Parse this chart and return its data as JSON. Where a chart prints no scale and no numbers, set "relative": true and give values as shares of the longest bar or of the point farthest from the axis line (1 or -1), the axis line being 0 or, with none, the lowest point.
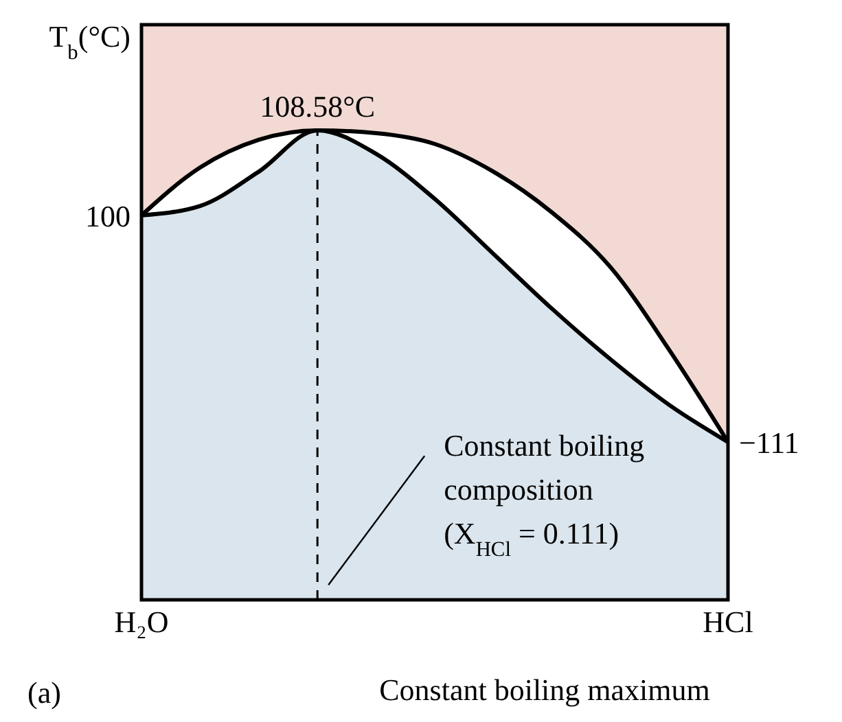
{
  "chart_data": {
    "type": "area",
    "title": "Constant boiling maximum",
    "ylabel": "T$_{b}$(°C)",
    "relative": true,
    "categories": [
      "H₂O",
      null,
      null,
      null,
      null,
      null,
      null,
      null,
      null,
      null,
      "HCl"
    ],
    "series": [
      {
        "color": "#f2d9d3",
        "values": [
          0.819,
          0.921,
          0.98,
          1,
          0.994,
          0.971,
          0.912,
          0.825,
          0.708,
          0.532,
          0.336
        ]
      },
      {
        "color": "#dae5ed",
        "values": [
          0.819,
          0.839,
          0.912,
          1,
          0.95,
          0.854,
          0.737,
          0.62,
          0.512,
          0.415,
          0.336
        ]
      }
    ],
    "annotations": [
      "108.58°C",
      {
        "text": "100",
        "x": "H₂O",
        "y": 0.819
      },
      {
        "text": "−111",
        "x": "HCl",
        "y": 0.336
      },
      "Constant boiling\ncomposition\n(X$_{HCl}$ = 0.111)",
      "(a)"
    ]
  }
}
